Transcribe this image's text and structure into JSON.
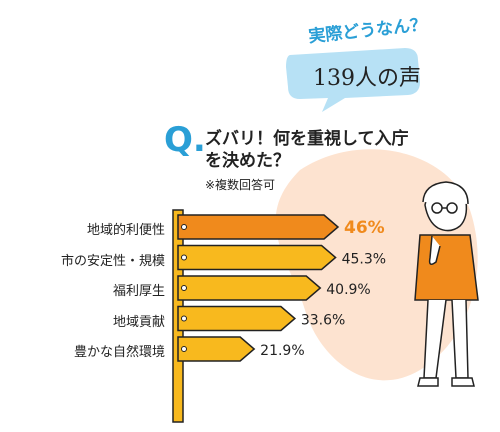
{
  "header": {
    "line1": "実際どうなん？",
    "count_label": "139人の声"
  },
  "question": {
    "letter": "Q.",
    "text": "ズバリ！何を重視して入庁を決めた？",
    "note": "※複数回答可"
  },
  "colors": {
    "accent_blue": "#2a9fd6",
    "bubble_blue": "#b7e1f5",
    "bar_top": "#f08a1c",
    "bar_other": "#f8b91e",
    "pole": "#f8b91e",
    "blob": "#fde3d0",
    "highlight_value": "#f08a1c"
  },
  "chart_data": {
    "type": "bar",
    "orientation": "horizontal",
    "categories": [
      "地域的利便性",
      "市の安定性・規模",
      "福利厚生",
      "地域貢献",
      "豊かな自然環境"
    ],
    "values": [
      46,
      45.3,
      40.9,
      33.6,
      21.9
    ],
    "value_labels": [
      "46%",
      "45.3%",
      "40.9%",
      "33.6%",
      "21.9%"
    ],
    "unit": "%",
    "xlim": [
      0,
      46
    ],
    "grid": false,
    "legend": "none"
  }
}
